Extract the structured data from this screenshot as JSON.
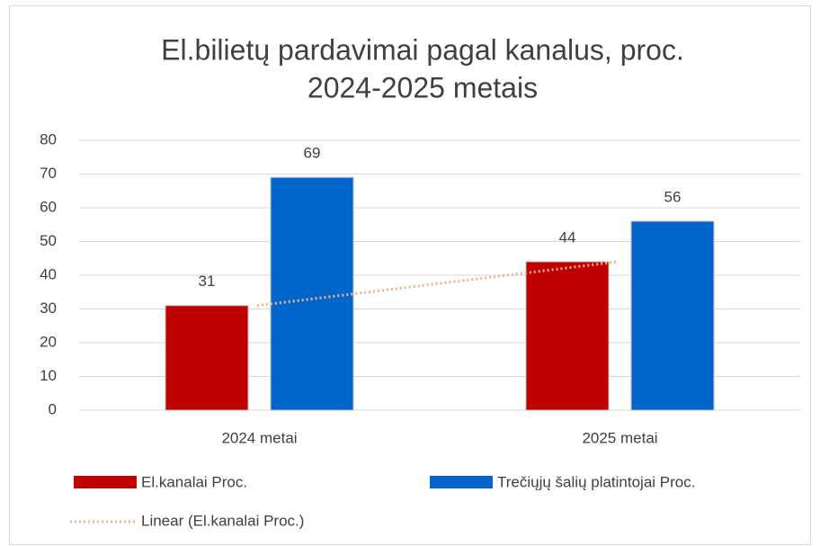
{
  "chart_data": {
    "type": "bar",
    "title": [
      "El.bilietų pardavimai pagal  kanalus, proc.",
      "2024-2025 metais"
    ],
    "categories": [
      "2024 metai",
      "2025 metai"
    ],
    "series": [
      {
        "name": "El.kanalai Proc.",
        "color": "#c00000",
        "values": [
          31,
          44
        ]
      },
      {
        "name": "Trečiųjų šalių platintojai Proc.",
        "color": "#0066cc",
        "values": [
          69,
          56
        ]
      }
    ],
    "trendline": {
      "name": "Linear (El.kanalai Proc.)",
      "color": "#f4b183",
      "series": 0,
      "type": "linear"
    },
    "ylim": [
      0,
      80
    ],
    "yticks": [
      0,
      10,
      20,
      30,
      40,
      50,
      60,
      70,
      80
    ],
    "grid": true,
    "legend": "bottom"
  }
}
